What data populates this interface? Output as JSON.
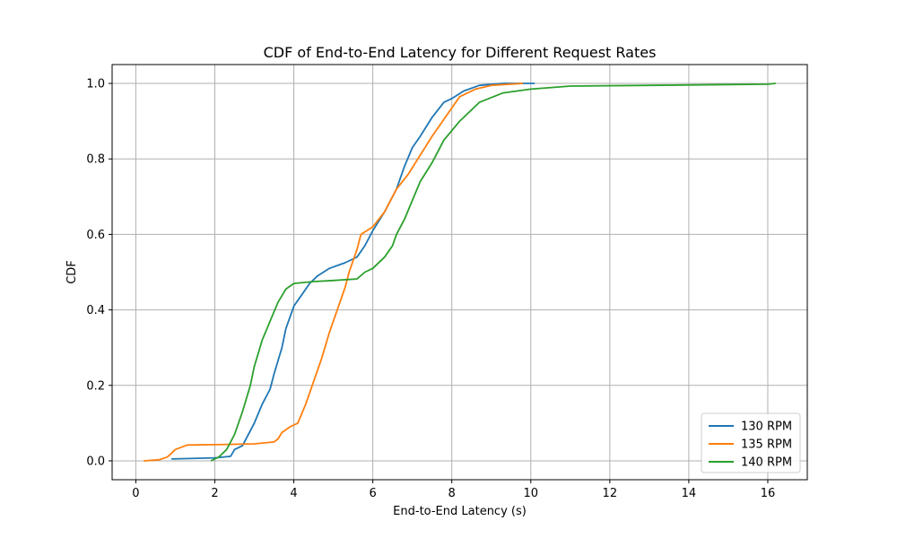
{
  "chart_data": {
    "type": "line",
    "title": "CDF of End-to-End Latency for Different Request Rates",
    "xlabel": "End-to-End Latency (s)",
    "ylabel": "CDF",
    "xlim": [
      -0.6,
      17.0
    ],
    "ylim": [
      -0.05,
      1.05
    ],
    "xticks": [
      0,
      2,
      4,
      6,
      8,
      10,
      12,
      14,
      16
    ],
    "yticks": [
      0.0,
      0.2,
      0.4,
      0.6,
      0.8,
      1.0
    ],
    "xtick_labels": [
      "0",
      "2",
      "4",
      "6",
      "8",
      "10",
      "12",
      "14",
      "16"
    ],
    "ytick_labels": [
      "0.0",
      "0.2",
      "0.4",
      "0.6",
      "0.8",
      "1.0"
    ],
    "grid": true,
    "legend_position": "lower-right",
    "series": [
      {
        "name": "130 RPM",
        "color": "#1f77b4",
        "points": [
          [
            0.9,
            0.005
          ],
          [
            2.0,
            0.008
          ],
          [
            2.4,
            0.012
          ],
          [
            2.5,
            0.03
          ],
          [
            2.7,
            0.04
          ],
          [
            2.8,
            0.06
          ],
          [
            3.0,
            0.1
          ],
          [
            3.2,
            0.15
          ],
          [
            3.4,
            0.19
          ],
          [
            3.5,
            0.23
          ],
          [
            3.7,
            0.3
          ],
          [
            3.8,
            0.35
          ],
          [
            4.0,
            0.41
          ],
          [
            4.2,
            0.44
          ],
          [
            4.4,
            0.47
          ],
          [
            4.6,
            0.49
          ],
          [
            4.9,
            0.51
          ],
          [
            5.3,
            0.525
          ],
          [
            5.6,
            0.54
          ],
          [
            5.8,
            0.57
          ],
          [
            6.0,
            0.61
          ],
          [
            6.3,
            0.66
          ],
          [
            6.6,
            0.72
          ],
          [
            6.8,
            0.78
          ],
          [
            7.0,
            0.83
          ],
          [
            7.2,
            0.86
          ],
          [
            7.5,
            0.91
          ],
          [
            7.8,
            0.95
          ],
          [
            8.0,
            0.96
          ],
          [
            8.3,
            0.98
          ],
          [
            8.7,
            0.995
          ],
          [
            9.3,
            1.0
          ],
          [
            10.1,
            1.0
          ]
        ]
      },
      {
        "name": "135 RPM",
        "color": "#ff7f0e",
        "points": [
          [
            0.2,
            0.0
          ],
          [
            0.6,
            0.003
          ],
          [
            0.8,
            0.01
          ],
          [
            1.0,
            0.03
          ],
          [
            1.3,
            0.042
          ],
          [
            2.0,
            0.043
          ],
          [
            2.6,
            0.044
          ],
          [
            3.0,
            0.045
          ],
          [
            3.5,
            0.05
          ],
          [
            3.6,
            0.058
          ],
          [
            3.7,
            0.075
          ],
          [
            3.9,
            0.09
          ],
          [
            4.1,
            0.1
          ],
          [
            4.3,
            0.15
          ],
          [
            4.5,
            0.21
          ],
          [
            4.7,
            0.27
          ],
          [
            4.9,
            0.34
          ],
          [
            5.1,
            0.4
          ],
          [
            5.3,
            0.46
          ],
          [
            5.4,
            0.5
          ],
          [
            5.6,
            0.56
          ],
          [
            5.7,
            0.6
          ],
          [
            6.0,
            0.62
          ],
          [
            6.3,
            0.66
          ],
          [
            6.6,
            0.72
          ],
          [
            6.9,
            0.76
          ],
          [
            7.2,
            0.81
          ],
          [
            7.5,
            0.86
          ],
          [
            7.9,
            0.92
          ],
          [
            8.2,
            0.965
          ],
          [
            8.6,
            0.985
          ],
          [
            9.0,
            0.995
          ],
          [
            9.8,
            1.0
          ]
        ]
      },
      {
        "name": "140 RPM",
        "color": "#2ca02c",
        "points": [
          [
            1.9,
            0.0
          ],
          [
            2.1,
            0.01
          ],
          [
            2.3,
            0.03
          ],
          [
            2.5,
            0.07
          ],
          [
            2.7,
            0.13
          ],
          [
            2.9,
            0.2
          ],
          [
            3.0,
            0.25
          ],
          [
            3.2,
            0.32
          ],
          [
            3.4,
            0.37
          ],
          [
            3.6,
            0.42
          ],
          [
            3.8,
            0.455
          ],
          [
            4.0,
            0.47
          ],
          [
            4.5,
            0.475
          ],
          [
            5.0,
            0.478
          ],
          [
            5.6,
            0.482
          ],
          [
            5.8,
            0.5
          ],
          [
            6.0,
            0.51
          ],
          [
            6.3,
            0.54
          ],
          [
            6.5,
            0.57
          ],
          [
            6.6,
            0.6
          ],
          [
            6.8,
            0.64
          ],
          [
            7.0,
            0.69
          ],
          [
            7.2,
            0.74
          ],
          [
            7.5,
            0.79
          ],
          [
            7.8,
            0.85
          ],
          [
            8.2,
            0.9
          ],
          [
            8.7,
            0.95
          ],
          [
            9.3,
            0.975
          ],
          [
            10.0,
            0.985
          ],
          [
            11.0,
            0.993
          ],
          [
            13.0,
            0.995
          ],
          [
            15.0,
            0.997
          ],
          [
            16.0,
            0.998
          ],
          [
            16.2,
            1.0
          ]
        ]
      }
    ]
  }
}
